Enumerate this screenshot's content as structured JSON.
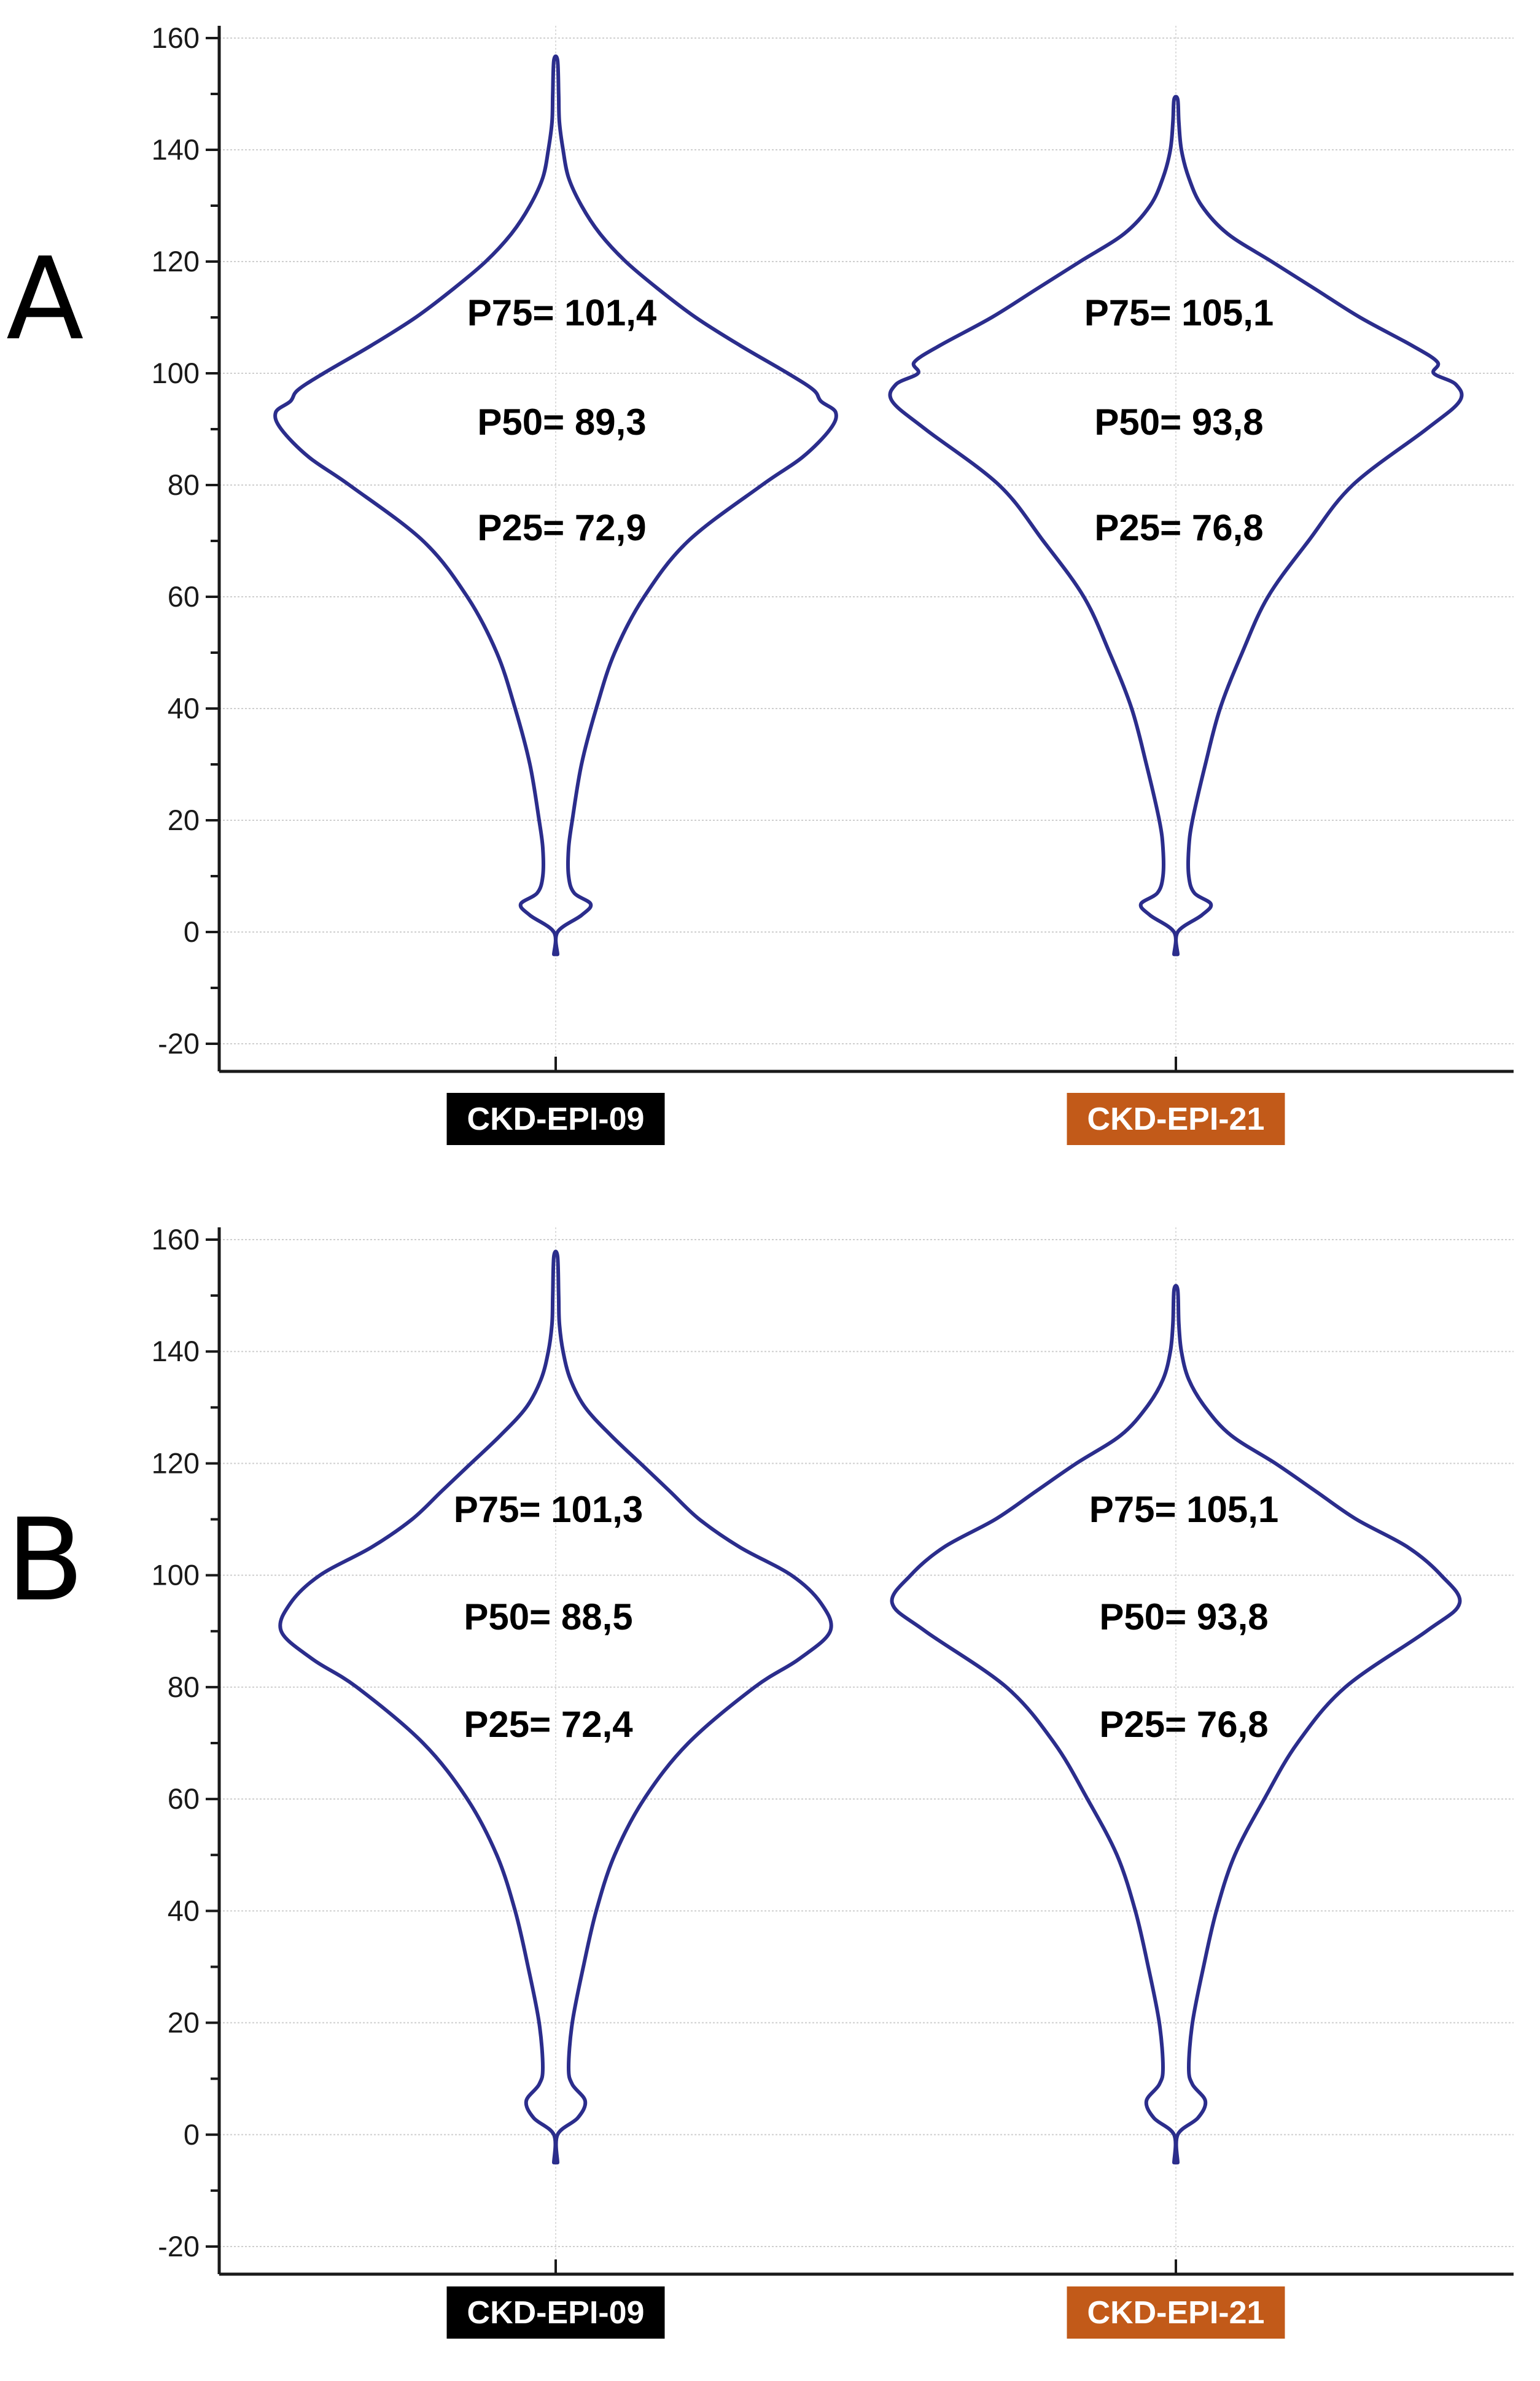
{
  "chart_data": [
    {
      "panel_label": "A",
      "type": "violin",
      "ylim": [
        -20,
        160
      ],
      "yticks": [
        -20,
        0,
        20,
        40,
        60,
        80,
        100,
        120,
        140,
        160
      ],
      "grid": true,
      "categories": [
        {
          "name": "CKD-EPI-09",
          "label_bg": "#000000",
          "P75": "P75= 101,4",
          "P50": "P50= 89,3",
          "P25": "P25= 72,9",
          "stats": {
            "p75": 101.4,
            "p50": 89.3,
            "p25": 72.9
          },
          "min": -4,
          "max": 156,
          "density": [
            [
              -4,
              0.05
            ],
            [
              0,
              0.05
            ],
            [
              3,
              0.7
            ],
            [
              5,
              0.95
            ],
            [
              7,
              0.5
            ],
            [
              10,
              0.35
            ],
            [
              15,
              0.35
            ],
            [
              20,
              0.45
            ],
            [
              30,
              0.7
            ],
            [
              40,
              1.1
            ],
            [
              50,
              1.6
            ],
            [
              60,
              2.4
            ],
            [
              70,
              3.6
            ],
            [
              80,
              5.6
            ],
            [
              85,
              6.7
            ],
            [
              90,
              7.45
            ],
            [
              93,
              7.6
            ],
            [
              95,
              7.2
            ],
            [
              97,
              7.0
            ],
            [
              100,
              6.3
            ],
            [
              105,
              5.0
            ],
            [
              110,
              3.8
            ],
            [
              115,
              2.8
            ],
            [
              120,
              1.9
            ],
            [
              125,
              1.2
            ],
            [
              130,
              0.7
            ],
            [
              135,
              0.35
            ],
            [
              140,
              0.2
            ],
            [
              145,
              0.1
            ],
            [
              150,
              0.08
            ],
            [
              156,
              0.05
            ]
          ]
        },
        {
          "name": "CKD-EPI-21",
          "label_bg": "#c25a19",
          "P75": "P75= 105,1",
          "P50": "P50= 93,8",
          "P25": "P25= 76,8",
          "stats": {
            "p75": 105.1,
            "p50": 93.8,
            "p25": 76.8
          },
          "min": -4,
          "max": 149,
          "density": [
            [
              -4,
              0.05
            ],
            [
              0,
              0.05
            ],
            [
              3,
              0.7
            ],
            [
              5,
              0.95
            ],
            [
              7,
              0.5
            ],
            [
              10,
              0.35
            ],
            [
              15,
              0.35
            ],
            [
              20,
              0.45
            ],
            [
              30,
              0.8
            ],
            [
              40,
              1.2
            ],
            [
              50,
              1.8
            ],
            [
              60,
              2.5
            ],
            [
              70,
              3.6
            ],
            [
              80,
              4.8
            ],
            [
              90,
              6.8
            ],
            [
              95,
              7.7
            ],
            [
              98,
              7.6
            ],
            [
              100,
              7.0
            ],
            [
              102,
              7.1
            ],
            [
              105,
              6.4
            ],
            [
              110,
              5.0
            ],
            [
              115,
              3.8
            ],
            [
              120,
              2.6
            ],
            [
              125,
              1.4
            ],
            [
              130,
              0.7
            ],
            [
              135,
              0.35
            ],
            [
              140,
              0.15
            ],
            [
              145,
              0.08
            ],
            [
              149,
              0.05
            ]
          ]
        }
      ]
    },
    {
      "panel_label": "B",
      "type": "violin",
      "ylim": [
        -20,
        160
      ],
      "yticks": [
        -20,
        0,
        20,
        40,
        60,
        80,
        100,
        120,
        140,
        160
      ],
      "grid": true,
      "categories": [
        {
          "name": "CKD-EPI-09",
          "label_bg": "#000000",
          "P75": "P75= 101,3",
          "P50": "P50= 88,5",
          "P25": "P25= 72,4",
          "stats": {
            "p75": 101.3,
            "p50": 88.5,
            "p25": 72.4
          },
          "min": -5,
          "max": 157,
          "density": [
            [
              -5,
              0.05
            ],
            [
              0,
              0.05
            ],
            [
              3,
              0.6
            ],
            [
              6,
              0.8
            ],
            [
              9,
              0.45
            ],
            [
              12,
              0.35
            ],
            [
              20,
              0.45
            ],
            [
              30,
              0.75
            ],
            [
              40,
              1.1
            ],
            [
              50,
              1.6
            ],
            [
              60,
              2.4
            ],
            [
              70,
              3.6
            ],
            [
              80,
              5.4
            ],
            [
              85,
              6.6
            ],
            [
              90,
              7.45
            ],
            [
              95,
              7.2
            ],
            [
              100,
              6.4
            ],
            [
              105,
              5.0
            ],
            [
              110,
              3.9
            ],
            [
              115,
              3.1
            ],
            [
              120,
              2.3
            ],
            [
              125,
              1.5
            ],
            [
              130,
              0.8
            ],
            [
              135,
              0.4
            ],
            [
              140,
              0.2
            ],
            [
              145,
              0.1
            ],
            [
              150,
              0.08
            ],
            [
              157,
              0.05
            ]
          ]
        },
        {
          "name": "CKD-EPI-21",
          "label_bg": "#c25a19",
          "P75": "P75= 105,1",
          "P50": "P50= 93,8",
          "P25": "P25= 76,8",
          "stats": {
            "p75": 105.1,
            "p50": 93.8,
            "p25": 76.8
          },
          "min": -5,
          "max": 151,
          "density": [
            [
              -5,
              0.05
            ],
            [
              0,
              0.05
            ],
            [
              3,
              0.6
            ],
            [
              6,
              0.8
            ],
            [
              9,
              0.45
            ],
            [
              12,
              0.35
            ],
            [
              20,
              0.45
            ],
            [
              30,
              0.75
            ],
            [
              40,
              1.1
            ],
            [
              50,
              1.6
            ],
            [
              60,
              2.4
            ],
            [
              70,
              3.3
            ],
            [
              80,
              4.6
            ],
            [
              90,
              6.8
            ],
            [
              95,
              7.7
            ],
            [
              100,
              7.2
            ],
            [
              105,
              6.3
            ],
            [
              110,
              4.9
            ],
            [
              115,
              3.8
            ],
            [
              120,
              2.7
            ],
            [
              125,
              1.5
            ],
            [
              130,
              0.8
            ],
            [
              135,
              0.35
            ],
            [
              140,
              0.15
            ],
            [
              145,
              0.08
            ],
            [
              151,
              0.05
            ]
          ]
        }
      ]
    }
  ]
}
